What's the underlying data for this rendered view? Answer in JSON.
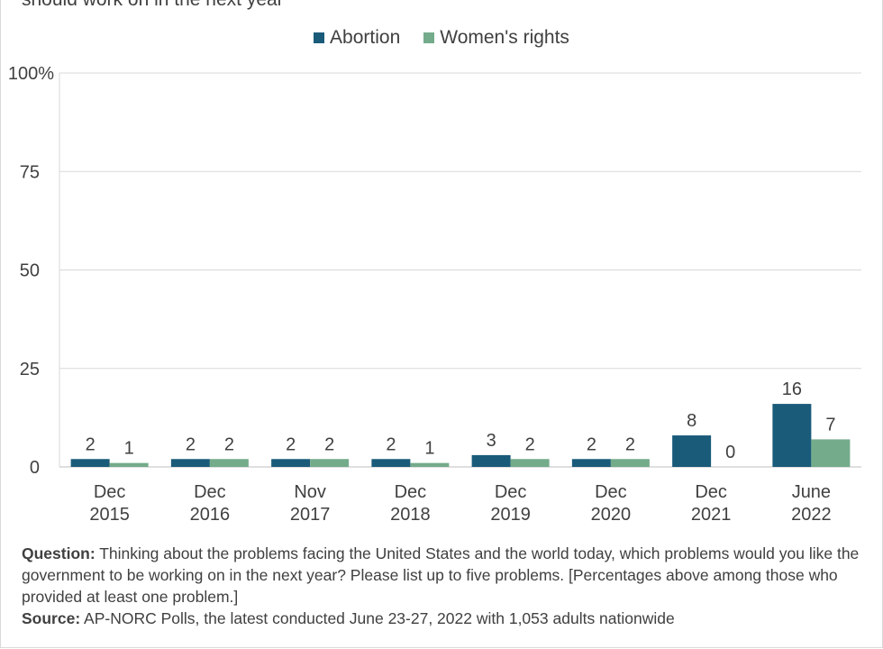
{
  "header": {
    "subtitle_fragment": "should work on in the next year"
  },
  "colors": {
    "abortion": "#1a5b7a",
    "womens_rights": "#74ab8b",
    "grid": "#d9d9d9",
    "text": "#404040"
  },
  "chart_data": {
    "type": "bar",
    "categories": [
      [
        "Dec",
        "2015"
      ],
      [
        "Dec",
        "2016"
      ],
      [
        "Nov",
        "2017"
      ],
      [
        "Dec",
        "2018"
      ],
      [
        "Dec",
        "2019"
      ],
      [
        "Dec",
        "2020"
      ],
      [
        "Dec",
        "2021"
      ],
      [
        "June",
        "2022"
      ]
    ],
    "series": [
      {
        "name": "Abortion",
        "values": [
          2,
          2,
          2,
          2,
          3,
          2,
          8,
          16
        ]
      },
      {
        "name": "Women's rights",
        "values": [
          1,
          2,
          2,
          1,
          2,
          2,
          0,
          7
        ]
      }
    ],
    "ylim": [
      0,
      100
    ],
    "yticks": [
      "0",
      "25",
      "50",
      "75",
      "100%"
    ],
    "ytick_values": [
      0,
      25,
      50,
      75,
      100
    ],
    "grid": true,
    "legend": "top-center",
    "data_labels": true
  },
  "notes": {
    "question_label": "Question:",
    "question_text": " Thinking about the problems facing the United States and the world today, which problems would you like the government to be working on in the next year? Please list up to five problems. [Percentages above among those who provided at least one problem.]",
    "source_label": "Source:",
    "source_text": " AP-NORC Polls, the latest conducted June 23-27, 2022 with 1,053 adults nationwide"
  }
}
